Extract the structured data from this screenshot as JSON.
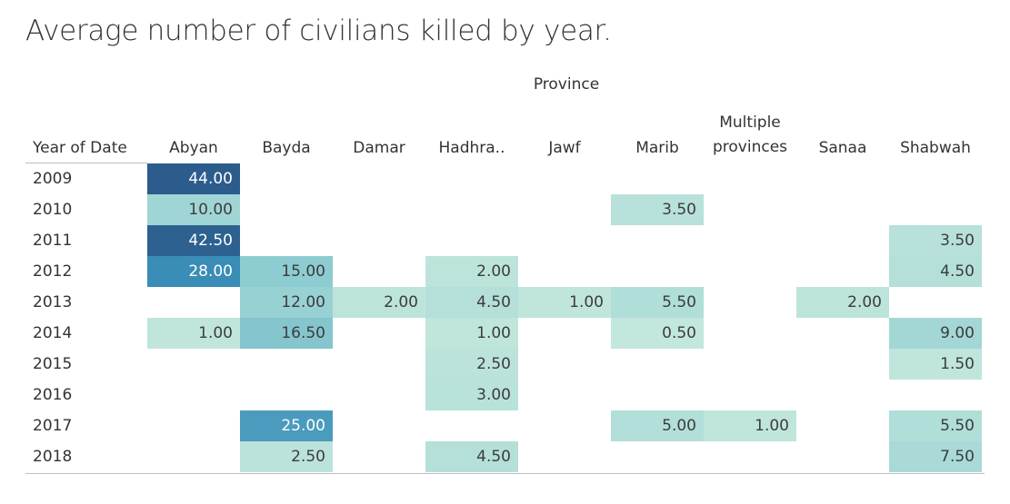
{
  "chart_data": {
    "type": "heatmap",
    "title": "Average number of civilians killed by year.",
    "column_group_label": "Province",
    "row_header": "Year of Date",
    "columns": [
      "Abyan",
      "Bayda",
      "Damar",
      "Hadhra..",
      "Jawf",
      "Marib",
      "Multiple provinces",
      "Sanaa",
      "Shabwah"
    ],
    "rows": [
      "2009",
      "2010",
      "2011",
      "2012",
      "2013",
      "2014",
      "2015",
      "2016",
      "2017",
      "2018"
    ],
    "values": [
      [
        44.0,
        null,
        null,
        null,
        null,
        null,
        null,
        null,
        null
      ],
      [
        10.0,
        null,
        null,
        null,
        null,
        3.5,
        null,
        null,
        null
      ],
      [
        42.5,
        null,
        null,
        null,
        null,
        null,
        null,
        null,
        3.5
      ],
      [
        28.0,
        15.0,
        null,
        2.0,
        null,
        null,
        null,
        null,
        4.5
      ],
      [
        null,
        12.0,
        2.0,
        4.5,
        1.0,
        5.5,
        null,
        2.0,
        null
      ],
      [
        1.0,
        16.5,
        null,
        1.0,
        null,
        0.5,
        null,
        null,
        9.0
      ],
      [
        null,
        null,
        null,
        2.5,
        null,
        null,
        null,
        null,
        1.5
      ],
      [
        null,
        null,
        null,
        3.0,
        null,
        null,
        null,
        null,
        null
      ],
      [
        null,
        25.0,
        null,
        null,
        null,
        5.0,
        1.0,
        null,
        5.5
      ],
      [
        null,
        2.5,
        null,
        4.5,
        null,
        null,
        null,
        null,
        7.5
      ]
    ],
    "value_format": "2 decimals",
    "color_scale": {
      "low": "#c4e8dd",
      "mid": "#8ccbd0",
      "high": "#2b5c8c"
    },
    "value_range": [
      0,
      44
    ]
  }
}
